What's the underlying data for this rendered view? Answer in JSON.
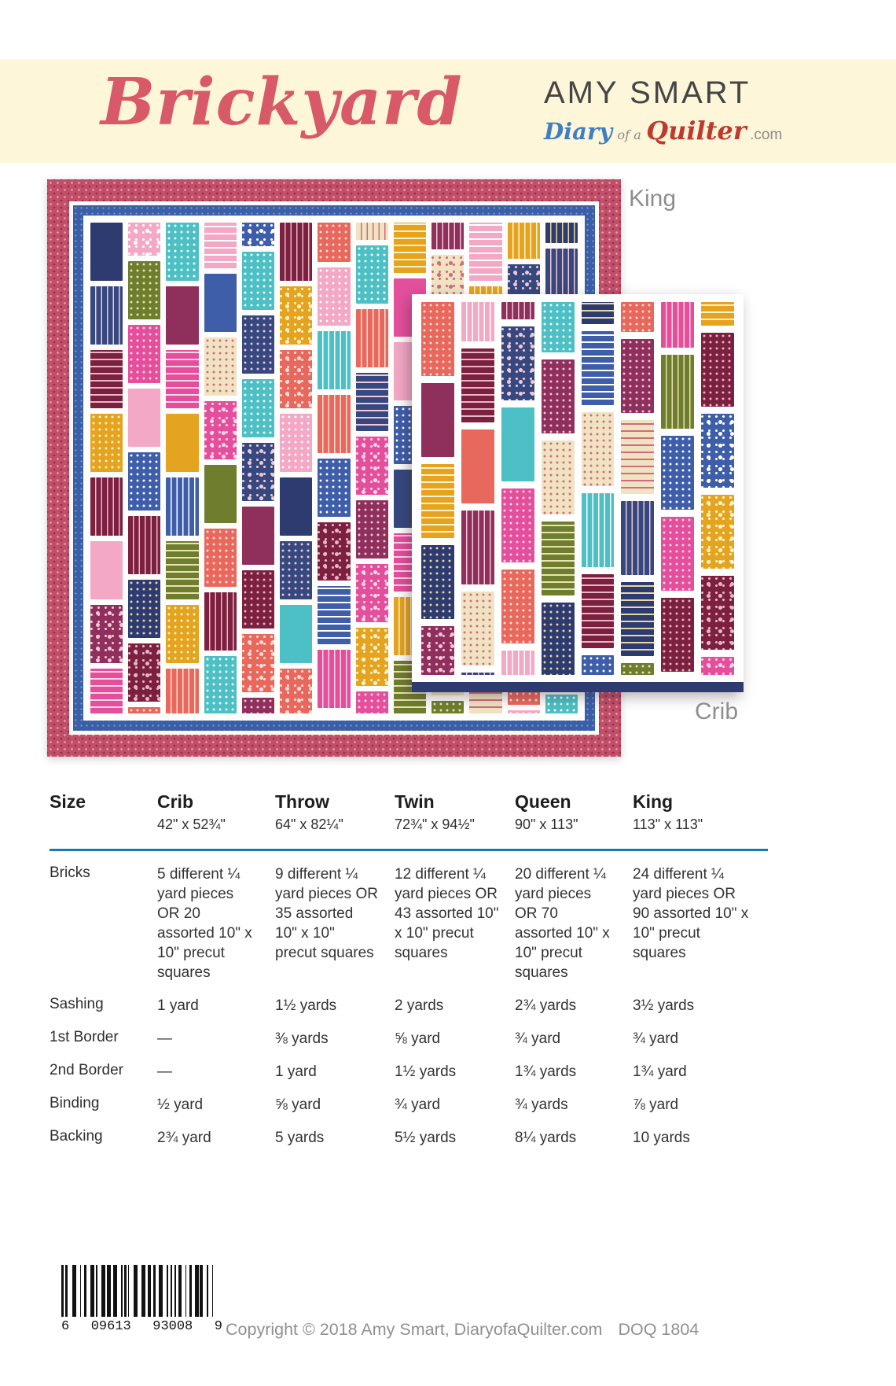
{
  "header": {
    "title": "Brickyard",
    "brand_name": "AMY SMART",
    "brand_diary": "Diary",
    "brand_ofa": "of a",
    "brand_quilter": "Quilter",
    "brand_com": ".com"
  },
  "quilts": {
    "king_label": "King",
    "crib_label": "Crib",
    "border_pink": "#c24f6a",
    "border_pink_dot_light": "#e59aa8",
    "border_pink_dot_dark": "#93304a",
    "border_blue": "#3a5fa8",
    "border_blue_dot": "#7f98cf",
    "crib_binding": "#2e3b70",
    "palette": [
      {
        "bg": "#2e3b70",
        "fg": "#e8d9a0"
      },
      {
        "bg": "#3f5ea9",
        "fg": "#ffffff"
      },
      {
        "bg": "#e44f9c",
        "fg": "#ffd7ea"
      },
      {
        "bg": "#f3a8c5",
        "fg": "#ffffff"
      },
      {
        "bg": "#6e7e2e",
        "fg": "#e8e3b0"
      },
      {
        "bg": "#e5a41f",
        "fg": "#fff3cf"
      },
      {
        "bg": "#7c2040",
        "fg": "#e9b6c8"
      },
      {
        "bg": "#4cc0c4",
        "fg": "#ffffff"
      },
      {
        "bg": "#e8685d",
        "fg": "#ffe0d6"
      },
      {
        "bg": "#8f2f5c",
        "fg": "#f0c7d8"
      },
      {
        "bg": "#efe3c2",
        "fg": "#d06a7c"
      },
      {
        "bg": "#35487f",
        "fg": "#f3c8d4"
      }
    ]
  },
  "table": {
    "columns": [
      {
        "label": "Size",
        "dim": ""
      },
      {
        "label": "Crib",
        "dim": "42\" x 52¾\""
      },
      {
        "label": "Throw",
        "dim": "64\" x 82¼\""
      },
      {
        "label": "Twin",
        "dim": "72¾\" x 94½\""
      },
      {
        "label": "Queen",
        "dim": "90\" x 113\""
      },
      {
        "label": "King",
        "dim": "113\" x 113\""
      }
    ],
    "rows": [
      {
        "label": "Bricks",
        "values": [
          "5 different ¼ yard pieces OR 20 assorted 10\" x 10\" precut squares",
          "9 different ¼ yard pieces OR 35 assorted 10\" x 10\" precut squares",
          "12 different ¼ yard pieces OR 43 assorted 10\" x 10\" precut squares",
          "20 different ¼ yard pieces OR 70 assorted 10\" x 10\" precut squares",
          "24 different ¼ yard pieces OR 90 assorted 10\" x 10\" precut squares"
        ]
      },
      {
        "label": "Sashing",
        "values": [
          "1 yard",
          "1½ yards",
          "2 yards",
          "2¾ yards",
          "3½ yards"
        ]
      },
      {
        "label": "1st Border",
        "values": [
          "—",
          "⅜ yards",
          "⅝ yard",
          "¾ yard",
          "¾ yard"
        ]
      },
      {
        "label": "2nd Border",
        "values": [
          "—",
          "1 yard",
          "1½ yards",
          "1¾ yards",
          "1¾ yard"
        ]
      },
      {
        "label": "Binding",
        "values": [
          "½ yard",
          "⅝ yard",
          "¾ yard",
          "¾ yards",
          "⅞ yard"
        ]
      },
      {
        "label": "Backing",
        "values": [
          "2¾ yard",
          "5 yards",
          "5½ yards",
          "8¼ yards",
          "10 yards"
        ]
      }
    ]
  },
  "footer": {
    "barcode_digits": [
      "6",
      "09613",
      "93008",
      "9"
    ],
    "copyright": "Copyright © 2018 Amy Smart, DiaryofaQuilter.com",
    "code": "DOQ 1804"
  }
}
